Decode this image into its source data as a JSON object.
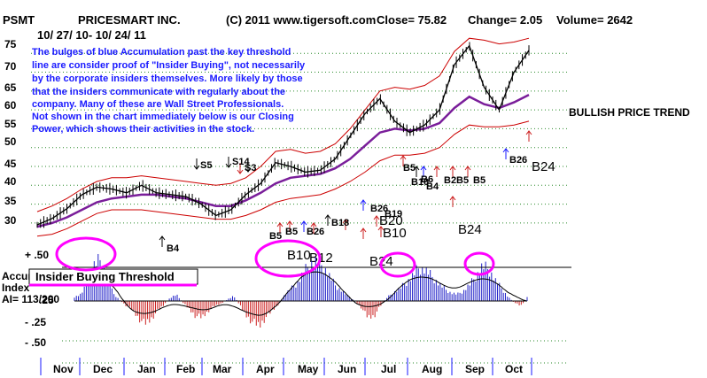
{
  "header": {
    "ticker": "PSMT",
    "company": "PRICESMART INC.",
    "copyright": "(C) 2011 www.tigersoft.com",
    "close": "Close=  75.82",
    "change": "Change= 2.05",
    "volume": "Volume= 2642",
    "date_range": "10/ 27/ 10- 10/ 24/ 11"
  },
  "annotation": {
    "lines": [
      "The bulges of blue Accumulation past the key threshold",
      "line are consider proof of \"Insider Buying\", not necessarily",
      "by the corporate insiders themselves.  More likely by those",
      "that the insiders communicate with regularly about the",
      "company.  Many of these are Wall Street Professionals.",
      "Not shown in the chart immediately below is our Closing",
      "Power, which shows their activities in the stock."
    ]
  },
  "trend_label": "BULLISH PRICE TREND",
  "threshold_label": "Insider Buying Threshold",
  "indicator_label": [
    "Accum",
    "Index",
    "AI= 113/200"
  ],
  "price_ticks": [
    "75",
    "70",
    "65",
    "60",
    "55",
    "50",
    "45",
    "40",
    "35",
    "30"
  ],
  "ai_ticks": [
    "+ .50",
    ".25",
    "0",
    "- .25",
    "- .50"
  ],
  "months": [
    "Nov",
    "Dec",
    "Jan",
    "Feb",
    "Mar",
    "Apr",
    "May",
    "Jun",
    "Jul",
    "Aug",
    "Sep",
    "Oct"
  ],
  "signals": [
    {
      "text": "S5",
      "size": "small"
    },
    {
      "text": "S14",
      "size": "small"
    },
    {
      "text": "S3",
      "size": "small"
    },
    {
      "text": "B4",
      "size": "small"
    },
    {
      "text": "B5",
      "size": "small"
    },
    {
      "text": "B5",
      "size": "small"
    },
    {
      "text": "B26",
      "size": "small"
    },
    {
      "text": "B18",
      "size": "small"
    },
    {
      "text": "B10",
      "size": "big"
    },
    {
      "text": "B12",
      "size": "big"
    },
    {
      "text": "B26",
      "size": "small"
    },
    {
      "text": "B19",
      "size": "small"
    },
    {
      "text": "B20",
      "size": "big"
    },
    {
      "text": "B10",
      "size": "big"
    },
    {
      "text": "B24",
      "size": "big"
    },
    {
      "text": "B5",
      "size": "small"
    },
    {
      "text": "B10",
      "size": "small"
    },
    {
      "text": "B6",
      "size": "small"
    },
    {
      "text": "B4",
      "size": "small"
    },
    {
      "text": "B2B5",
      "size": "small"
    },
    {
      "text": "B5",
      "size": "small"
    },
    {
      "text": "B24",
      "size": "big"
    },
    {
      "text": "B26",
      "size": "small"
    },
    {
      "text": "B24",
      "size": "big"
    }
  ],
  "chart_data": [
    {
      "type": "line",
      "title": "",
      "xlabel": "",
      "ylabel": "",
      "ylim": [
        26,
        79
      ],
      "x_ticks": [
        "Nov",
        "Dec",
        "Jan",
        "Feb",
        "Mar",
        "Apr",
        "May",
        "Jun",
        "Jul",
        "Aug",
        "Sep",
        "Oct"
      ],
      "series": [
        {
          "values": [
            29.5,
            31.2,
            33.8,
            37.5,
            39.5,
            39.0,
            38.0,
            40.0,
            38.0,
            37.5,
            37.0,
            35.0,
            32.0,
            33.5,
            37.5,
            40.5,
            46.0,
            45.0,
            43.5,
            44.0,
            47.0,
            53.0,
            59.0,
            63.0,
            57.0,
            54.0,
            56.0,
            60.0,
            72.0,
            77.0,
            66.0,
            60.0,
            70.0,
            75.8
          ]
        },
        {
          "values": [
            29.0,
            30.0,
            31.5,
            33.5,
            35.5,
            36.5,
            37.0,
            37.5,
            37.5,
            37.0,
            36.5,
            35.5,
            34.5,
            34.5,
            36.0,
            38.0,
            40.5,
            42.0,
            42.5,
            43.0,
            44.5,
            47.0,
            50.5,
            54.0,
            55.0,
            54.5,
            55.0,
            56.5,
            60.5,
            63.5,
            61.5,
            60.5,
            62.0,
            64.0
          ]
        },
        {
          "values": [
            33.0,
            34.5,
            36.5,
            39.0,
            41.0,
            42.0,
            42.0,
            42.5,
            42.0,
            41.5,
            41.0,
            40.5,
            40.0,
            40.5,
            42.0,
            45.0,
            49.0,
            49.5,
            48.5,
            49.0,
            51.0,
            55.0,
            60.0,
            65.0,
            66.0,
            65.5,
            66.5,
            69.0,
            75.5,
            79.0,
            78.5,
            77.5,
            78.0,
            79.0
          ]
        },
        {
          "values": [
            26.5,
            27.0,
            28.5,
            30.5,
            32.5,
            33.5,
            33.5,
            33.5,
            33.0,
            32.5,
            32.0,
            31.5,
            31.0,
            31.0,
            32.0,
            33.5,
            35.5,
            36.5,
            37.0,
            37.5,
            39.0,
            41.0,
            43.5,
            46.5,
            48.0,
            48.0,
            48.5,
            50.0,
            53.5,
            56.0,
            55.5,
            55.5,
            56.0,
            57.0
          ]
        }
      ]
    },
    {
      "type": "bar",
      "title": "",
      "xlabel": "",
      "ylabel": "",
      "ylim": [
        -0.6,
        0.6
      ],
      "threshold": 0.2,
      "x_ticks": [
        "Nov",
        "Dec",
        "Jan",
        "Feb",
        "Mar",
        "Apr",
        "May",
        "Jun",
        "Jul",
        "Aug",
        "Sep",
        "Oct"
      ],
      "series": [
        {
          "values": [
            0.05,
            0.08,
            0.2,
            0.42,
            0.5,
            0.35,
            0.1,
            0.02,
            -0.05,
            -0.1,
            -0.2,
            -0.28,
            -0.22,
            -0.12,
            -0.05,
            0.04,
            0.08,
            -0.02,
            -0.1,
            -0.18,
            -0.2,
            -0.12,
            -0.06,
            -0.03,
            0.02,
            0.06,
            -0.06,
            -0.18,
            -0.26,
            -0.3,
            -0.2,
            -0.12,
            -0.04,
            0.08,
            0.15,
            0.22,
            0.35,
            0.45,
            0.48,
            0.42,
            0.3,
            0.18,
            0.12,
            0.05,
            0.0,
            -0.08,
            -0.2,
            -0.18,
            -0.06,
            0.04,
            0.1,
            0.15,
            0.22,
            0.3,
            0.4,
            0.38,
            0.3,
            0.22,
            0.15,
            0.1,
            0.08,
            0.12,
            0.2,
            0.3,
            0.42,
            0.38,
            0.25,
            0.15,
            0.05,
            -0.02,
            -0.06,
            0.04
          ]
        }
      ]
    }
  ],
  "colors": {
    "ai_positive": "#2020c8",
    "ai_negative": "#cc2020",
    "ma": "#7a1e9a",
    "band": "#cc0000",
    "price": "#000000",
    "circle": "#ff00ff",
    "note": "#1a1aff"
  }
}
